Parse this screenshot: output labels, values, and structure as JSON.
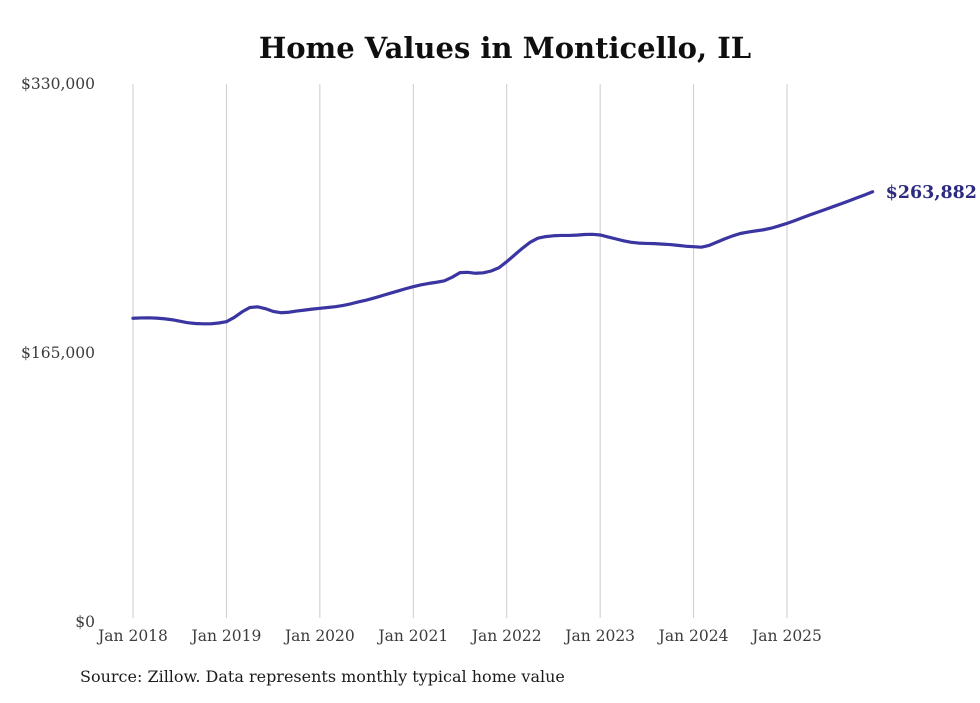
{
  "chart_data": {
    "type": "line",
    "title": "Home Values in Monticello, IL",
    "source_note": "Source: Zillow. Data represents monthly typical home value",
    "end_label": "$263,882",
    "legend": "none",
    "grid": "vertical-only",
    "colors": {
      "line": "#3a35a1",
      "end_label": "#2b2a80",
      "gridline": "#cccccc",
      "tick_text": "#3c3c3c",
      "title_text": "#0f0f0f",
      "background": "#ffffff"
    },
    "y_axis": {
      "range": [
        0,
        330000
      ],
      "ticks": [
        {
          "label": "$0",
          "value": 0
        },
        {
          "label": "$165,000",
          "value": 165000
        },
        {
          "label": "$330,000",
          "value": 330000
        }
      ]
    },
    "x_axis": {
      "tick_labels": [
        "Jan 2018",
        "Jan 2019",
        "Jan 2020",
        "Jan 2021",
        "Jan 2022",
        "Jan 2023",
        "Jan 2024",
        "Jan 2025"
      ],
      "tick_years": [
        2018,
        2019,
        2020,
        2021,
        2022,
        2023,
        2024,
        2025
      ]
    },
    "x_months": [
      "2018-01",
      "2018-02",
      "2018-03",
      "2018-04",
      "2018-05",
      "2018-06",
      "2018-07",
      "2018-08",
      "2018-09",
      "2018-10",
      "2018-11",
      "2018-12",
      "2019-01",
      "2019-02",
      "2019-03",
      "2019-04",
      "2019-05",
      "2019-06",
      "2019-07",
      "2019-08",
      "2019-09",
      "2019-10",
      "2019-11",
      "2019-12",
      "2020-01",
      "2020-02",
      "2020-03",
      "2020-04",
      "2020-05",
      "2020-06",
      "2020-07",
      "2020-08",
      "2020-09",
      "2020-10",
      "2020-11",
      "2020-12",
      "2021-01",
      "2021-02",
      "2021-03",
      "2021-04",
      "2021-05",
      "2021-06",
      "2021-07",
      "2021-08",
      "2021-09",
      "2021-10",
      "2021-11",
      "2021-12",
      "2022-01",
      "2022-02",
      "2022-03",
      "2022-04",
      "2022-05",
      "2022-06",
      "2022-07",
      "2022-08",
      "2022-09",
      "2022-10",
      "2022-11",
      "2022-12",
      "2023-01",
      "2023-02",
      "2023-03",
      "2023-04",
      "2023-05",
      "2023-06",
      "2023-07",
      "2023-08",
      "2023-09",
      "2023-10",
      "2023-11",
      "2023-12",
      "2024-01",
      "2024-02",
      "2024-03",
      "2024-04",
      "2024-05",
      "2024-06",
      "2024-07",
      "2024-08",
      "2024-09",
      "2024-10",
      "2024-11",
      "2024-12",
      "2025-01",
      "2025-02",
      "2025-03",
      "2025-04",
      "2025-05",
      "2025-06",
      "2025-07",
      "2025-08",
      "2025-09",
      "2025-10",
      "2025-11",
      "2025-12"
    ],
    "series": [
      {
        "name": "Typical home value",
        "values": [
          186300,
          186500,
          186600,
          186400,
          186000,
          185400,
          184500,
          183600,
          183100,
          182900,
          182900,
          183400,
          184200,
          186800,
          190200,
          192900,
          193300,
          192200,
          190500,
          189700,
          190000,
          190700,
          191300,
          191900,
          192400,
          192900,
          193400,
          194200,
          195200,
          196400,
          197500,
          198800,
          200200,
          201600,
          203000,
          204400,
          205700,
          206800,
          207700,
          208400,
          209300,
          211500,
          214300,
          214500,
          213900,
          214200,
          215300,
          217300,
          221000,
          225100,
          229200,
          232900,
          235400,
          236400,
          236900,
          237100,
          237100,
          237300,
          237700,
          237800,
          237400,
          236200,
          235000,
          233800,
          232900,
          232400,
          232200,
          232100,
          231800,
          231500,
          231000,
          230500,
          230200,
          229900,
          231000,
          233000,
          235000,
          236800,
          238300,
          239200,
          239900,
          240600,
          241600,
          243000,
          244500,
          246200,
          248000,
          249800,
          251500,
          253200,
          254900,
          256600,
          258400,
          260200,
          262000,
          263882
        ]
      }
    ]
  }
}
